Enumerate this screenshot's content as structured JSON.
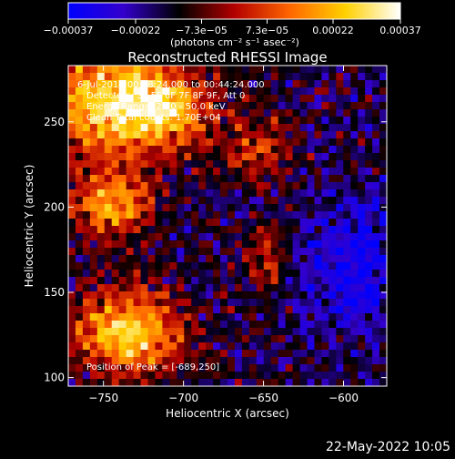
{
  "chart_data": {
    "type": "heatmap",
    "title": "Reconstructed RHESSI Image",
    "xlabel": "Heliocentric X (arcsec)",
    "ylabel": "Heliocentric Y (arcsec)",
    "xlim": [
      -772,
      -573
    ],
    "ylim": [
      95,
      283
    ],
    "x_ticks": [
      -750,
      -700,
      -650,
      -600
    ],
    "y_ticks": [
      100,
      150,
      200,
      250
    ],
    "x_tick_labels": [
      "−750",
      "−700",
      "−650",
      "−600"
    ],
    "y_tick_labels": [
      "100",
      "150",
      "200",
      "250"
    ],
    "colorbar": {
      "range": [
        -0.00037,
        0.00037
      ],
      "ticks": [
        -0.00037,
        -0.00022,
        -7.3e-05,
        7.3e-05,
        0.00022,
        0.00037
      ],
      "tick_labels": [
        "−0.00037",
        "−0.00022",
        "−7.3e−05",
        "7.3e−05",
        "0.00022",
        "0.00037"
      ],
      "unit_label": "(photons cm⁻² s⁻¹ asec⁻²)",
      "stops": [
        "#0000ff",
        "#3300cc",
        "#000000",
        "#b30000",
        "#ff6600",
        "#ffd000",
        "#ffffff"
      ]
    },
    "annotations": [
      "6-Jul-2015 00:38:24.000 to 00:44:24.000",
      "Detectors: 3F 5F 6F 7F 8F 9F, Att 0",
      "Energy Range: 25.0 - 50.0 keV",
      "Clean    Total counts: 1.70E+04"
    ],
    "peak_label": "Position of Peak = [-689,250]"
  },
  "footer": {
    "timestamp": "22-May-2022 10:05"
  }
}
